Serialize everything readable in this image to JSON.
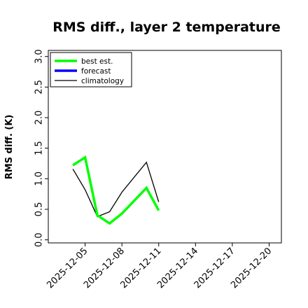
{
  "chart_data": {
    "type": "line",
    "title": "RMS diff., layer 2 temperature",
    "xlabel": "",
    "ylabel": "RMS diff. (K)",
    "ylim": [
      -0.05,
      3.1
    ],
    "yticks": [
      "0.0",
      "0.5",
      "1.0",
      "1.5",
      "2.0",
      "2.5",
      "3.0"
    ],
    "xlim": [
      "2025-12-02",
      "2025-12-21"
    ],
    "xticks": [
      "2025-12-05",
      "2025-12-08",
      "2025-12-11",
      "2025-12-14",
      "2025-12-17",
      "2025-12-20"
    ],
    "highlighted_xtick": "2025-12-11",
    "highlight_color": "#228B22",
    "grid": false,
    "legend_position": "top-left",
    "series": [
      {
        "name": "best est.",
        "color": "#00ff00",
        "x": [
          "2025-12-04",
          "2025-12-05",
          "2025-12-06",
          "2025-12-07",
          "2025-12-08",
          "2025-12-10",
          "2025-12-11"
        ],
        "values": [
          1.22,
          1.35,
          0.4,
          0.27,
          0.43,
          0.85,
          0.48
        ]
      },
      {
        "name": "forecast",
        "color": "#0000ff",
        "x": [],
        "values": []
      },
      {
        "name": "climatology",
        "color": "#000000",
        "x": [
          "2025-12-04",
          "2025-12-05",
          "2025-12-06",
          "2025-12-07",
          "2025-12-08",
          "2025-12-10",
          "2025-12-11"
        ],
        "values": [
          1.16,
          0.82,
          0.38,
          0.46,
          0.78,
          1.27,
          0.62
        ]
      }
    ]
  }
}
